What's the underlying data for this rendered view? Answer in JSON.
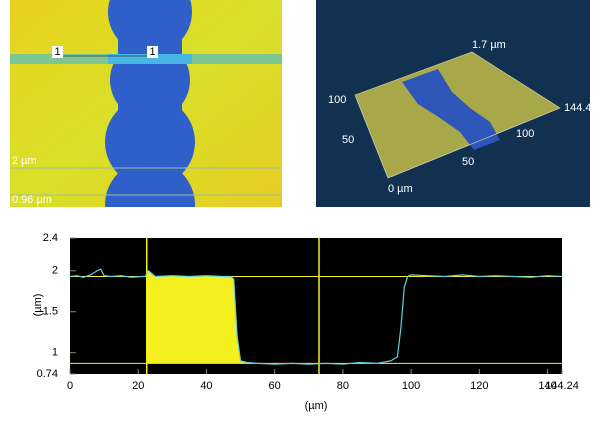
{
  "image_labels": {
    "cursor_a": "1",
    "cursor_b": "1",
    "upper_level": "2 µm",
    "lower_level": "0.96 µm"
  },
  "view3d_labels": {
    "z_max": "1.7 µm",
    "y_100": "100",
    "y_50": "50",
    "origin": "0 µm",
    "x_max": "144.4",
    "x_100": "100",
    "x_50": "50"
  },
  "chart_data": {
    "type": "line",
    "x_label": "(µm)",
    "y_label": "(µm)",
    "x": [
      0,
      2,
      4,
      6,
      8,
      9,
      10,
      12,
      15,
      18,
      21,
      22,
      23,
      25,
      30,
      35,
      40,
      45,
      47,
      48,
      49,
      50,
      52,
      55,
      60,
      65,
      70,
      75,
      80,
      85,
      90,
      94,
      96,
      97,
      98,
      99,
      100,
      105,
      110,
      115,
      120,
      125,
      130,
      135,
      140,
      144.24
    ],
    "series": [
      {
        "color": "#5fd3e0",
        "values": [
          1.93,
          1.94,
          1.92,
          1.95,
          2.0,
          2.02,
          1.94,
          1.93,
          1.94,
          1.92,
          1.93,
          1.93,
          2.0,
          1.93,
          1.94,
          1.93,
          1.94,
          1.93,
          1.93,
          1.9,
          1.2,
          0.9,
          0.88,
          0.87,
          0.86,
          0.87,
          0.86,
          0.87,
          0.86,
          0.88,
          0.87,
          0.9,
          0.95,
          1.3,
          1.8,
          1.93,
          1.95,
          1.94,
          1.93,
          1.95,
          1.93,
          1.94,
          1.93,
          1.92,
          1.94,
          1.93
        ]
      }
    ],
    "xlim": [
      0,
      144.24
    ],
    "xticks": [
      0,
      20,
      40,
      60,
      80,
      100,
      120,
      140,
      144.24
    ],
    "ylim": [
      0.74,
      2.4
    ],
    "yticks": [
      0.74,
      1,
      1.5,
      2,
      2.4
    ],
    "cursors": [
      22.5,
      73
    ],
    "reference_levels": [
      1.93,
      0.87
    ],
    "cursor_color": "#f5f020",
    "fill_color": "#f5f020"
  }
}
